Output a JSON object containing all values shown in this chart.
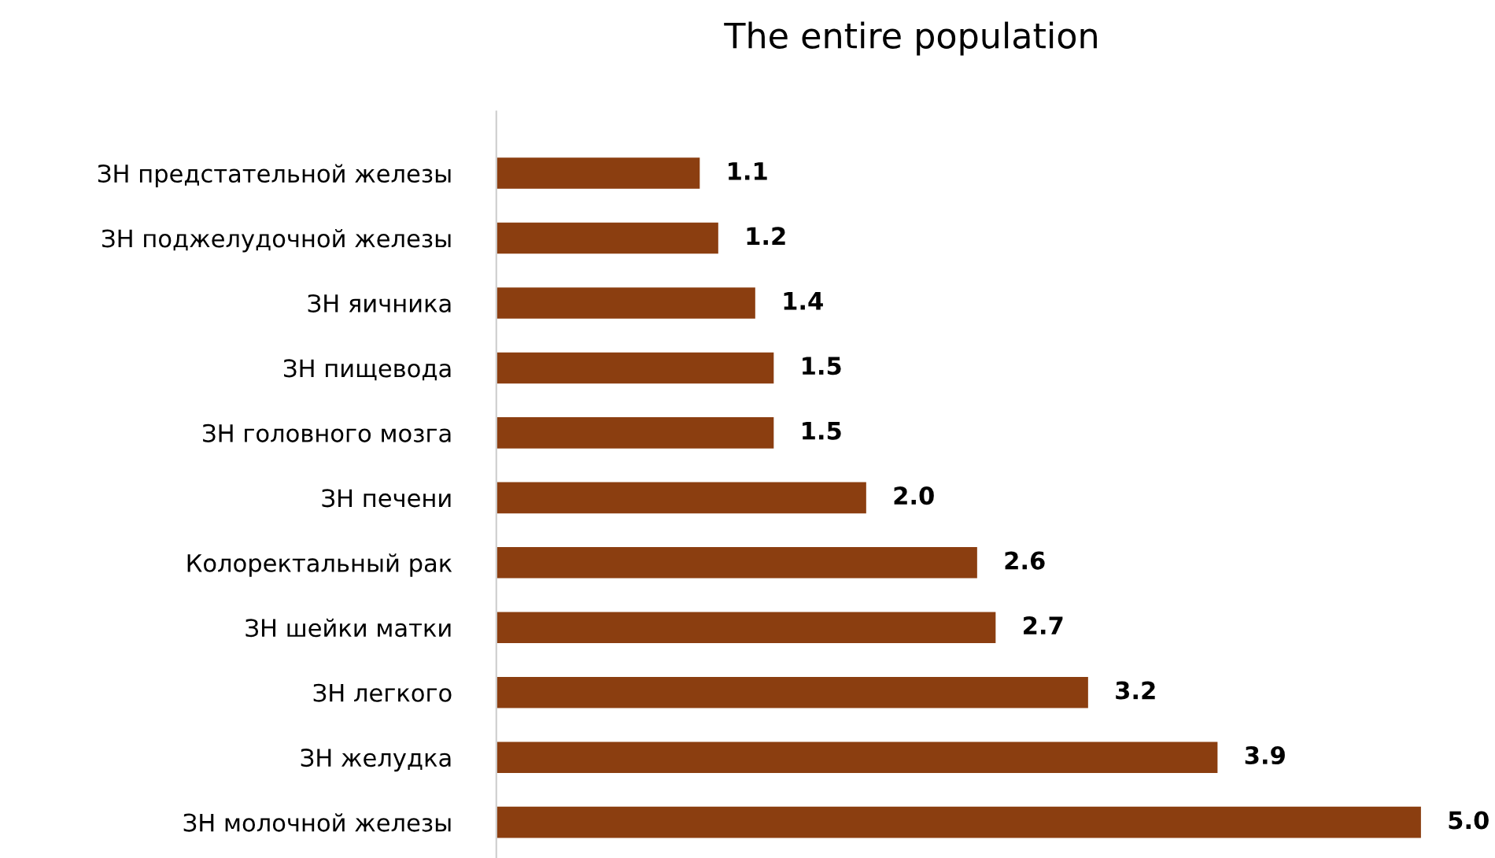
{
  "chart_data": {
    "type": "bar",
    "orientation": "horizontal",
    "title": "The entire population",
    "categories": [
      "ЗН предстательной железы",
      "ЗН поджелудочной железы",
      "ЗН яичника",
      "ЗН пищевода",
      "ЗН головного мозга",
      "ЗН печени",
      "Колоректальный рак",
      "ЗН шейки матки",
      "ЗН легкого",
      "ЗН желудка",
      "ЗН молочной железы"
    ],
    "values": [
      1.1,
      1.2,
      1.4,
      1.5,
      1.5,
      2.0,
      2.6,
      2.7,
      3.2,
      3.9,
      5.0
    ],
    "value_labels": [
      "1.1",
      "1.2",
      "1.4",
      "1.5",
      "1.5",
      "2.0",
      "2.6",
      "2.7",
      "3.2",
      "3.9",
      "5.0"
    ],
    "color": "#8b3e10",
    "grid": false,
    "legend": false
  }
}
